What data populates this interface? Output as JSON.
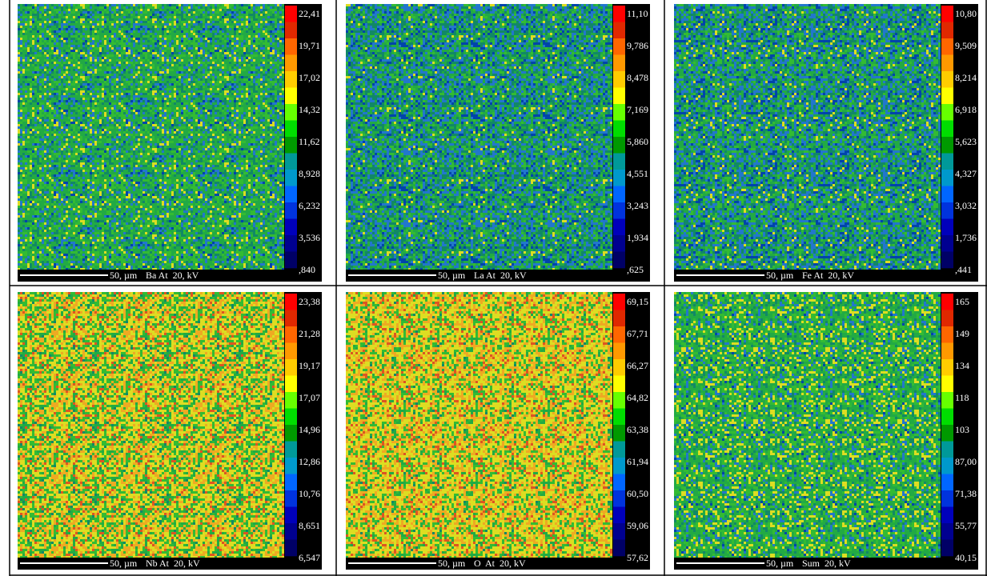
{
  "panels": [
    {
      "scale": "50, µm",
      "label": "Ba At  20, kV",
      "levels": [
        "22,41",
        "19,71",
        "17,02",
        "14,32",
        "11,62",
        "8,928",
        "6,232",
        "3,536",
        ",840"
      ]
    },
    {
      "scale": "50, µm",
      "label": "La At  20, kV",
      "levels": [
        "11,10",
        "9,786",
        "8,478",
        "7,169",
        "5,860",
        "4,551",
        "3,243",
        "1,934",
        ",625"
      ]
    },
    {
      "scale": "50, µm",
      "label": "Fe At  20, kV",
      "levels": [
        "10,80",
        "9,509",
        "8,214",
        "6,918",
        "5,623",
        "4,327",
        "3,032",
        "1,736",
        ",441"
      ]
    },
    {
      "scale": "50, µm",
      "label": "Nb At  20, kV",
      "levels": [
        "23,38",
        "21,28",
        "19,17",
        "17,07",
        "14,96",
        "12,86",
        "10,76",
        "8,651",
        "6,547"
      ]
    },
    {
      "scale": "50, µm",
      "label": "O  At  20, kV",
      "levels": [
        "69,15",
        "67,71",
        "66,27",
        "64,82",
        "63,38",
        "61,94",
        "60,50",
        "59,06",
        "57,62"
      ]
    },
    {
      "scale": "50, µm",
      "label": "Sum  20, kV",
      "levels": [
        "165",
        "149",
        "134",
        "118",
        "103",
        "87,00",
        "71,38",
        "55,77",
        "40,15"
      ]
    }
  ]
}
